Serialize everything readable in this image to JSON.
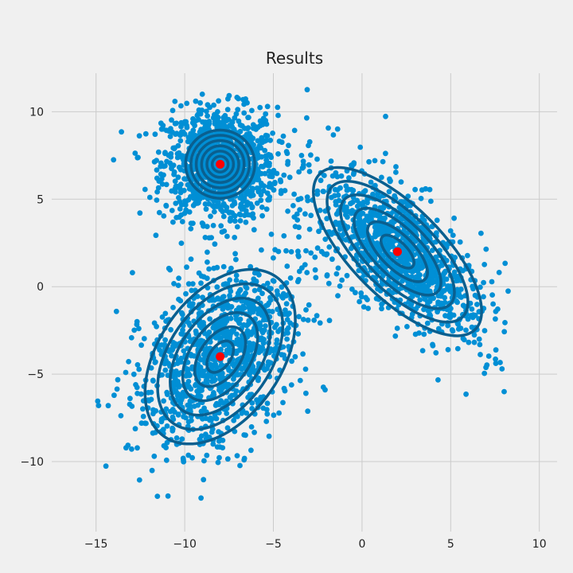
{
  "chart_data": {
    "type": "scatter",
    "title": "Results",
    "xlabel": "",
    "ylabel": "",
    "xlim": [
      -17.5,
      11
    ],
    "ylim": [
      -14,
      12.2
    ],
    "x_ticks": [
      -15,
      -10,
      -5,
      0,
      5,
      10
    ],
    "y_ticks": [
      -10,
      -5,
      0,
      5,
      10
    ],
    "x_tick_labels": [
      "−15",
      "−10",
      "−5",
      "0",
      "5",
      "10"
    ],
    "y_tick_labels": [
      "−10",
      "−5",
      "0",
      "5",
      "10"
    ],
    "grid": true,
    "colors": {
      "background": "#f0f0f0",
      "points": "#008fd5",
      "contours": "#0a5f8f",
      "centers": "#ff0000",
      "grid": "#cbcbcb"
    },
    "clusters": [
      {
        "center": [
          -8,
          7
        ],
        "std": [
          1.6,
          1.6
        ],
        "rotation_deg": 0,
        "contour_semi_axes": [
          [
            0.45,
            0.45
          ],
          [
            0.75,
            0.75
          ],
          [
            1.05,
            1.05
          ],
          [
            1.35,
            1.35
          ],
          [
            1.65,
            1.65
          ],
          [
            1.95,
            1.95
          ]
        ]
      },
      {
        "center": [
          2,
          2
        ],
        "std": [
          3.0,
          1.4
        ],
        "rotation_deg": -45,
        "contour_semi_axes": [
          [
            1.2,
            0.55
          ],
          [
            2.2,
            0.95
          ],
          [
            3.2,
            1.35
          ],
          [
            4.2,
            1.75
          ],
          [
            5.2,
            2.15
          ],
          [
            6.2,
            2.6
          ]
        ]
      },
      {
        "center": [
          -8,
          -4
        ],
        "std": [
          3.0,
          1.9
        ],
        "rotation_deg": 55,
        "contour_semi_axes": [
          [
            1.0,
            0.6
          ],
          [
            1.9,
            1.15
          ],
          [
            2.8,
            1.7
          ],
          [
            3.7,
            2.3
          ],
          [
            4.6,
            2.9
          ],
          [
            5.5,
            3.5
          ]
        ]
      }
    ]
  }
}
